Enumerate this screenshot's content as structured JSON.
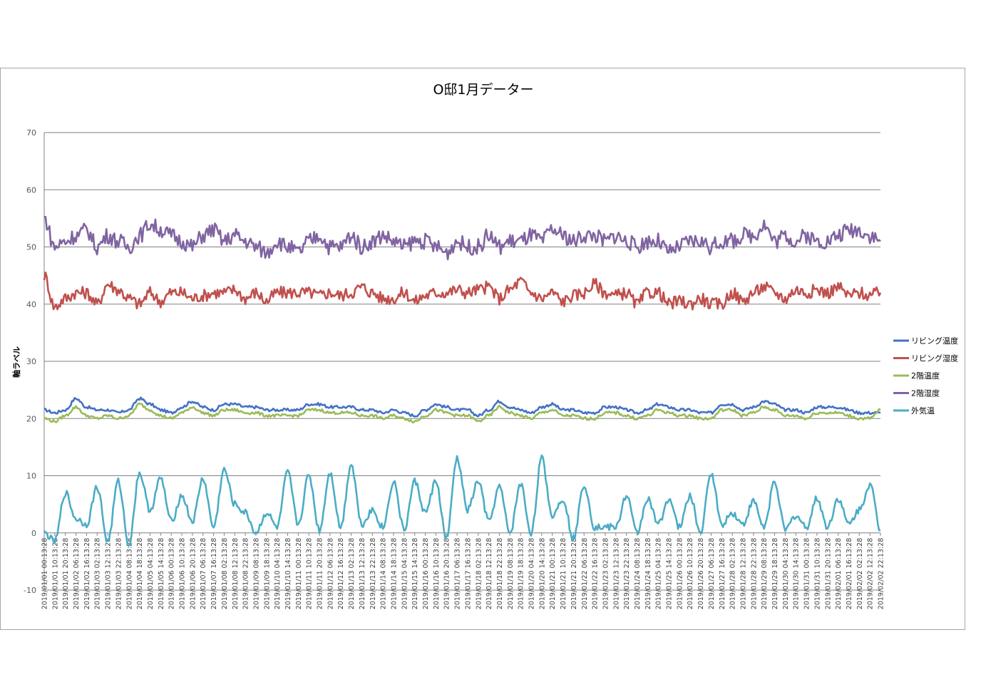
{
  "chart_data": {
    "type": "line",
    "title": "O邸1月データー",
    "ylabel": "軸ラベル",
    "xlabel": "",
    "ylim": [
      -10,
      70
    ],
    "yticks": [
      -10,
      0,
      10,
      20,
      30,
      40,
      50,
      60,
      70
    ],
    "grid": true,
    "legend_position": "right",
    "x_tick_labels": [
      "2019/01/01 00:13:28",
      "2019/01/01 10:13:28",
      "2019/01/01 20:13:28",
      "2019/01/02 06:13:28",
      "2019/01/02 16:13:28",
      "2019/01/03 02:13:28",
      "2019/01/03 12:13:28",
      "2019/01/03 22:13:28",
      "2019/01/04 08:13:28",
      "2019/01/04 18:13:28",
      "2019/01/05 04:13:28",
      "2019/01/05 14:13:28",
      "2019/01/06 00:13:28",
      "2019/01/06 10:13:28",
      "2019/01/06 20:13:28",
      "2019/01/07 06:13:28",
      "2019/01/07 16:13:28",
      "2019/01/08 02:13:28",
      "2019/01/08 12:13:28",
      "2019/01/08 22:13:28",
      "2019/01/09 08:13:28",
      "2019/01/09 18:13:28",
      "2019/01/10 04:13:28",
      "2019/01/10 14:13:28",
      "2019/01/11 00:13:28",
      "2019/01/11 10:13:28",
      "2019/01/11 20:13:28",
      "2019/01/12 06:13:28",
      "2019/01/12 16:13:28",
      "2019/01/13 02:13:28",
      "2019/01/13 12:13:28",
      "2019/01/13 22:13:28",
      "2019/01/14 08:13:28",
      "2019/01/14 18:13:28",
      "2019/01/15 04:13:28",
      "2019/01/15 14:13:28",
      "2019/01/16 00:13:28",
      "2019/01/16 10:13:28",
      "2019/01/16 20:13:28",
      "2019/01/17 06:13:28",
      "2019/01/17 16:13:28",
      "2019/01/18 02:13:28",
      "2019/01/18 12:13:28",
      "2019/01/18 22:13:28",
      "2019/01/19 08:13:28",
      "2019/01/19 18:13:28",
      "2019/01/20 04:13:28",
      "2019/01/20 14:13:28",
      "2019/01/21 00:13:28",
      "2019/01/21 10:13:28",
      "2019/01/21 20:13:28",
      "2019/01/22 06:13:28",
      "2019/01/22 16:13:28",
      "2019/01/23 02:13:28",
      "2019/01/23 12:13:28",
      "2019/01/23 22:13:28",
      "2019/01/24 08:13:28",
      "2019/01/24 18:13:28",
      "2019/01/25 04:13:28",
      "2019/01/25 14:13:28",
      "2019/01/26 00:13:28",
      "2019/01/26 10:13:28",
      "2019/01/26 20:13:28",
      "2019/01/27 06:13:28",
      "2019/01/27 16:13:28",
      "2019/01/28 02:13:28",
      "2019/01/28 12:13:28",
      "2019/01/28 22:13:28",
      "2019/01/29 08:13:28",
      "2019/01/29 18:13:28",
      "2019/01/30 04:13:28",
      "2019/01/30 14:13:28",
      "2019/01/31 00:13:28",
      "2019/01/31 10:13:28",
      "2019/01/31 20:13:28",
      "2019/02/01 06:13:28",
      "2019/02/01 16:13:28",
      "2019/02/02 02:13:28",
      "2019/02/02 12:13:28",
      "2019/02/02 22:13:28"
    ],
    "series": [
      {
        "name": "リビング温度",
        "color": "#4472C4",
        "values": [
          21.5,
          21.0,
          21.5,
          23.5,
          22.0,
          21.5,
          21.5,
          21.0,
          21.5,
          23.5,
          22.5,
          21.5,
          21.0,
          22.0,
          23.0,
          22.0,
          21.5,
          22.5,
          22.5,
          22.0,
          22.0,
          21.5,
          21.5,
          21.5,
          21.5,
          22.5,
          22.5,
          22.0,
          22.0,
          22.0,
          21.5,
          21.5,
          21.0,
          21.5,
          21.0,
          20.5,
          21.5,
          22.5,
          22.0,
          21.5,
          21.5,
          20.5,
          21.5,
          23.0,
          22.0,
          21.5,
          21.0,
          22.0,
          22.5,
          21.5,
          21.5,
          21.0,
          21.0,
          22.0,
          22.0,
          21.5,
          21.0,
          21.5,
          22.5,
          22.0,
          21.5,
          21.5,
          21.0,
          21.0,
          22.5,
          22.5,
          21.5,
          22.0,
          23.0,
          22.5,
          21.5,
          21.5,
          21.0,
          22.0,
          22.0,
          22.0,
          21.5,
          21.0,
          21.0,
          21.0
        ]
      },
      {
        "name": "リビング湿度",
        "color": "#C0504D",
        "values": [
          45.0,
          39.5,
          41.0,
          42.0,
          42.0,
          40.0,
          43.5,
          42.5,
          41.0,
          40.0,
          42.0,
          40.5,
          42.0,
          42.0,
          41.0,
          41.5,
          42.0,
          42.0,
          42.5,
          41.0,
          42.0,
          40.5,
          42.0,
          42.0,
          42.0,
          42.0,
          41.5,
          42.0,
          41.5,
          42.0,
          43.0,
          42.0,
          41.0,
          41.0,
          42.0,
          40.5,
          41.5,
          42.0,
          42.0,
          42.5,
          42.0,
          42.5,
          43.0,
          41.0,
          42.5,
          44.0,
          42.0,
          41.0,
          42.0,
          40.5,
          41.5,
          42.0,
          43.5,
          42.0,
          41.5,
          42.0,
          40.0,
          42.0,
          42.0,
          40.0,
          40.5,
          40.0,
          41.0,
          40.0,
          40.0,
          42.0,
          40.5,
          42.0,
          43.0,
          42.0,
          41.0,
          42.5,
          42.0,
          42.5,
          42.0,
          43.0,
          41.5,
          42.0,
          41.5,
          42.0
        ]
      },
      {
        "name": "2階温度",
        "color": "#9BBB59",
        "values": [
          20.0,
          19.5,
          20.5,
          22.0,
          20.5,
          20.0,
          20.5,
          20.0,
          20.5,
          22.5,
          21.5,
          20.5,
          20.0,
          21.0,
          22.0,
          21.0,
          20.5,
          21.5,
          21.5,
          21.0,
          21.0,
          20.5,
          20.5,
          20.5,
          20.5,
          21.5,
          21.5,
          21.0,
          21.0,
          21.0,
          20.5,
          20.5,
          20.0,
          20.5,
          20.0,
          19.5,
          20.5,
          21.5,
          21.0,
          20.5,
          20.5,
          19.5,
          20.5,
          22.0,
          21.0,
          20.5,
          20.0,
          21.0,
          21.5,
          20.5,
          20.5,
          20.0,
          20.0,
          21.0,
          21.0,
          20.5,
          20.0,
          20.5,
          21.5,
          21.0,
          20.5,
          20.5,
          20.0,
          20.0,
          21.5,
          21.5,
          20.5,
          21.0,
          22.0,
          21.5,
          20.5,
          20.5,
          20.0,
          21.0,
          21.0,
          21.0,
          20.5,
          20.0,
          20.0,
          21.5
        ]
      },
      {
        "name": "2階湿度",
        "color": "#8064A2",
        "values": [
          55.0,
          50.0,
          51.0,
          52.0,
          53.0,
          50.0,
          52.0,
          51.0,
          50.0,
          52.0,
          54.0,
          53.0,
          52.0,
          51.0,
          50.0,
          52.0,
          53.0,
          51.0,
          52.0,
          51.0,
          50.0,
          49.0,
          51.0,
          50.0,
          49.0,
          51.0,
          52.0,
          50.0,
          50.0,
          52.0,
          50.0,
          51.0,
          52.0,
          51.0,
          50.0,
          51.0,
          51.0,
          50.0,
          49.0,
          51.0,
          50.0,
          50.0,
          52.0,
          50.0,
          51.0,
          51.0,
          52.0,
          51.0,
          53.0,
          52.0,
          51.0,
          52.0,
          52.0,
          51.0,
          52.0,
          51.0,
          50.0,
          51.0,
          51.0,
          49.0,
          50.0,
          51.0,
          51.0,
          50.0,
          51.0,
          51.0,
          52.0,
          52.0,
          54.0,
          51.0,
          52.0,
          51.0,
          52.0,
          51.0,
          51.0,
          52.0,
          53.0,
          53.0,
          52.0,
          51.0
        ]
      },
      {
        "name": "外気温",
        "color": "#4BACC6",
        "values": [
          0.0,
          -1.5,
          7.0,
          2.5,
          1.5,
          8.0,
          -1.5,
          9.0,
          -2.0,
          10.5,
          4.0,
          9.5,
          2.0,
          6.5,
          2.0,
          9.5,
          1.0,
          11.0,
          5.0,
          3.5,
          0.0,
          3.5,
          1.0,
          10.5,
          1.5,
          10.0,
          0.5,
          10.5,
          1.0,
          12.0,
          1.5,
          4.0,
          1.0,
          9.0,
          0.5,
          9.0,
          3.5,
          9.0,
          -1.0,
          13.0,
          4.0,
          9.0,
          2.0,
          8.0,
          0.0,
          8.5,
          0.0,
          13.0,
          3.0,
          6.0,
          -1.0,
          8.5,
          1.0,
          1.0,
          1.0,
          6.5,
          0.0,
          6.0,
          1.5,
          6.0,
          1.0,
          6.5,
          0.0,
          10.5,
          1.5,
          3.5,
          1.5,
          5.5,
          1.0,
          9.0,
          0.5,
          3.0,
          1.0,
          6.0,
          1.0,
          6.0,
          1.5,
          4.0,
          8.5,
          0.5
        ]
      }
    ]
  }
}
